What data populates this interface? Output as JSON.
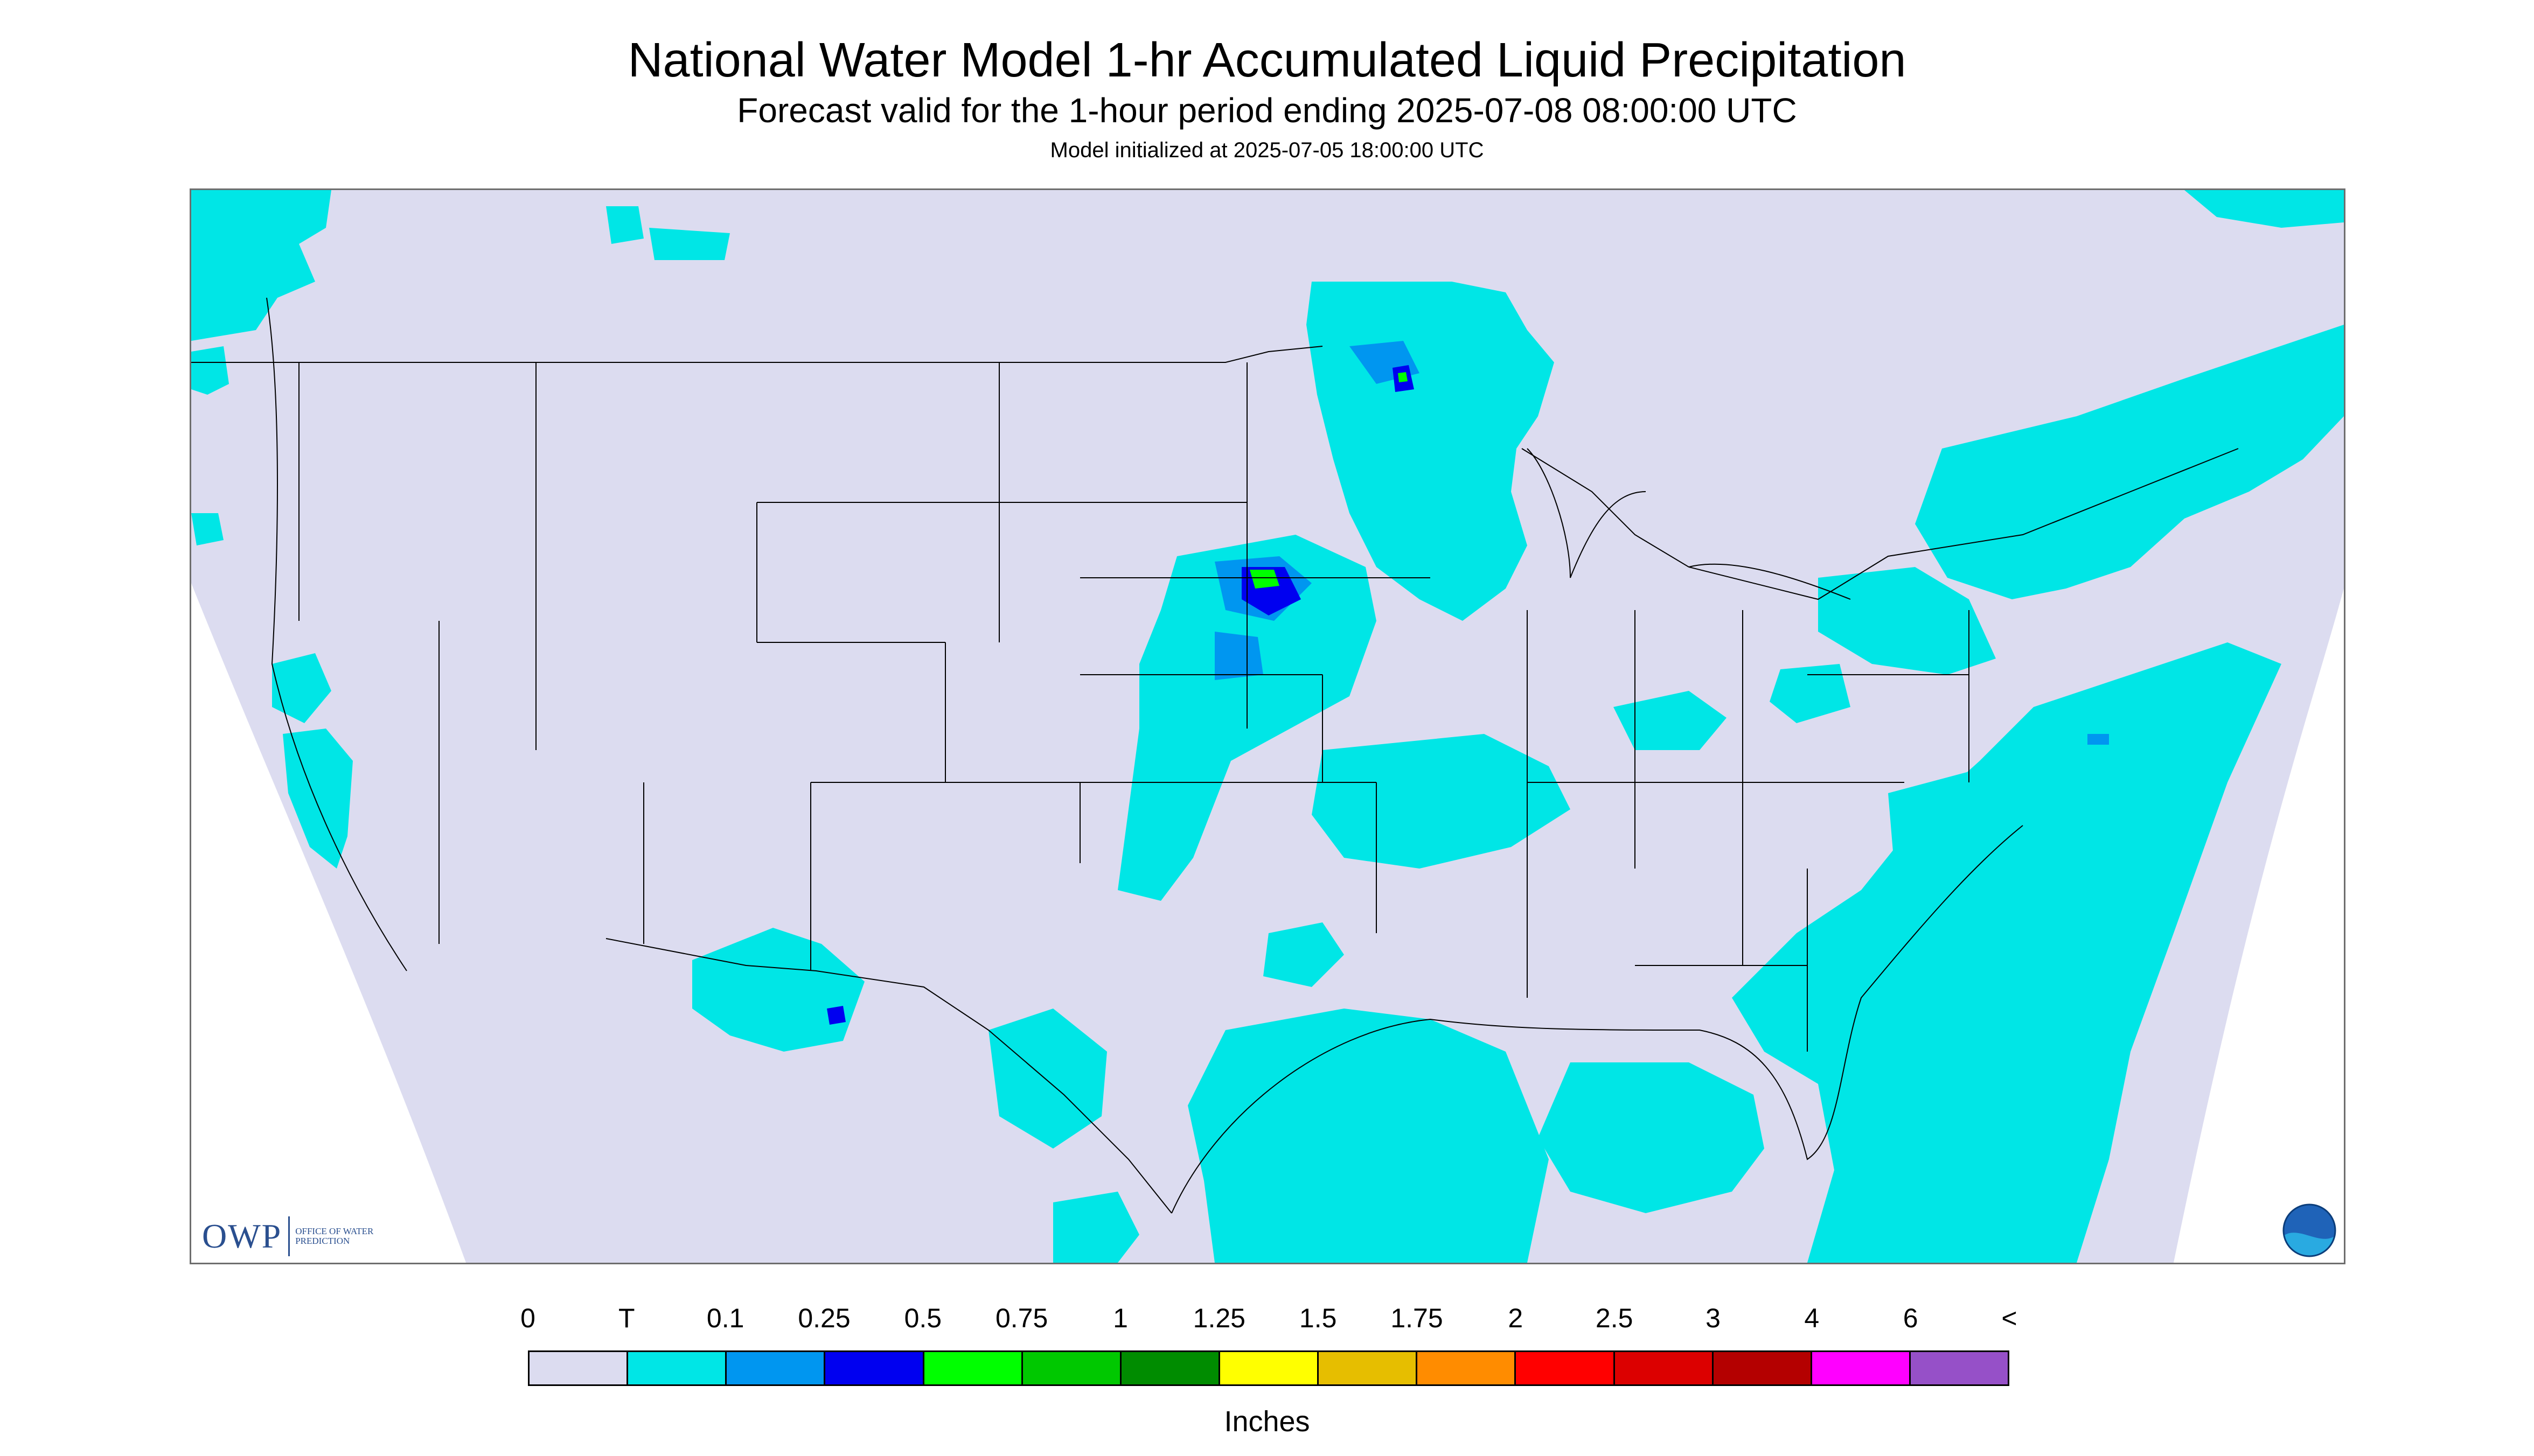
{
  "header": {
    "title": "National Water Model 1-hr Accumulated Liquid Precipitation",
    "subtitle": "Forecast valid for the 1-hour period ending 2025-07-08 08:00:00 UTC",
    "init": "Model initialized at 2025-07-05 18:00:00 UTC"
  },
  "map": {
    "background_color": "#dcdcf0",
    "outside_color": "#ffffff",
    "boundary_color": "#000000"
  },
  "logos": {
    "owp_big": "OWP",
    "owp_small": "OFFICE OF WATER PREDICTION",
    "noaa_text": "NOAA"
  },
  "legend": {
    "ticks": [
      "0",
      "T",
      "0.1",
      "0.25",
      "0.5",
      "0.75",
      "1",
      "1.25",
      "1.5",
      "1.75",
      "2",
      "2.5",
      "3",
      "4",
      "6",
      "<"
    ],
    "colors": [
      "#dcdcf0",
      "#00e6e6",
      "#0096f0",
      "#0000f0",
      "#00ff00",
      "#00c800",
      "#008c00",
      "#ffff00",
      "#e6be00",
      "#ff8c00",
      "#ff0000",
      "#dc0000",
      "#b40000",
      "#ff00ff",
      "#9650c8"
    ],
    "units": "Inches"
  }
}
